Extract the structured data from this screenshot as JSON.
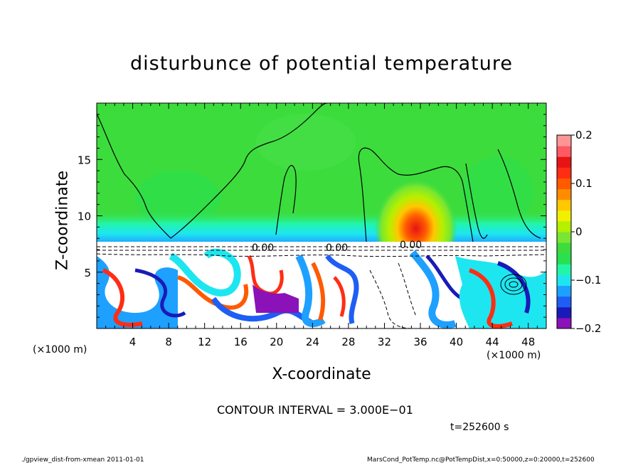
{
  "title": "disturbunce of potential temperature",
  "chart_data": {
    "type": "heatmap",
    "title": "disturbunce of potential temperature",
    "xlabel": "X-coordinate",
    "ylabel": "Z-coordinate",
    "x_unit": "(×1000 m)",
    "y_unit": "(×1000 m)",
    "xlim": [
      0,
      50
    ],
    "ylim": [
      0,
      20
    ],
    "x_ticks": [
      4,
      8,
      12,
      16,
      20,
      24,
      28,
      32,
      36,
      40,
      44,
      48
    ],
    "y_ticks": [
      5,
      10,
      15
    ],
    "colorbar": {
      "range": [
        -0.2,
        0.2
      ],
      "tick_values": [
        0.2,
        0.1,
        0,
        -0.1,
        -0.2
      ],
      "tick_labels": [
        "0.2",
        "0.1",
        "0",
        "−0.1",
        "−0.2"
      ],
      "colors": [
        "#8a12b8",
        "#1a1ab8",
        "#1e5ef5",
        "#1ea0ff",
        "#1ee6f0",
        "#22f5a8",
        "#28e050",
        "#3cdc3c",
        "#78e632",
        "#b4f000",
        "#f0f000",
        "#ffc800",
        "#ff8c00",
        "#ff5a00",
        "#ff2d14",
        "#e61414",
        "#ff5a64",
        "#ff9696"
      ]
    },
    "features": [
      {
        "kind": "warm anomaly",
        "x_center": 35.5,
        "z_center": 9.5,
        "max_value": 0.15
      },
      {
        "kind": "neutral upper layer",
        "z_range": [
          7.5,
          20
        ],
        "value": 0.0
      },
      {
        "kind": "turbulent lower layer",
        "z_range": [
          0,
          7.5
        ]
      }
    ],
    "contour_labels": [
      "0.00",
      "0.00",
      "0.00"
    ],
    "contour_interval": "CONTOUR INTERVAL = 3.000E−01",
    "time": "t=252600 s"
  },
  "footer": {
    "left": "./gpview_dist-from-xmean   2011-01-01",
    "right": "MarsCond_PotTemp.nc@PotTempDist,x=0:50000,z=0:20000,t=252600"
  }
}
